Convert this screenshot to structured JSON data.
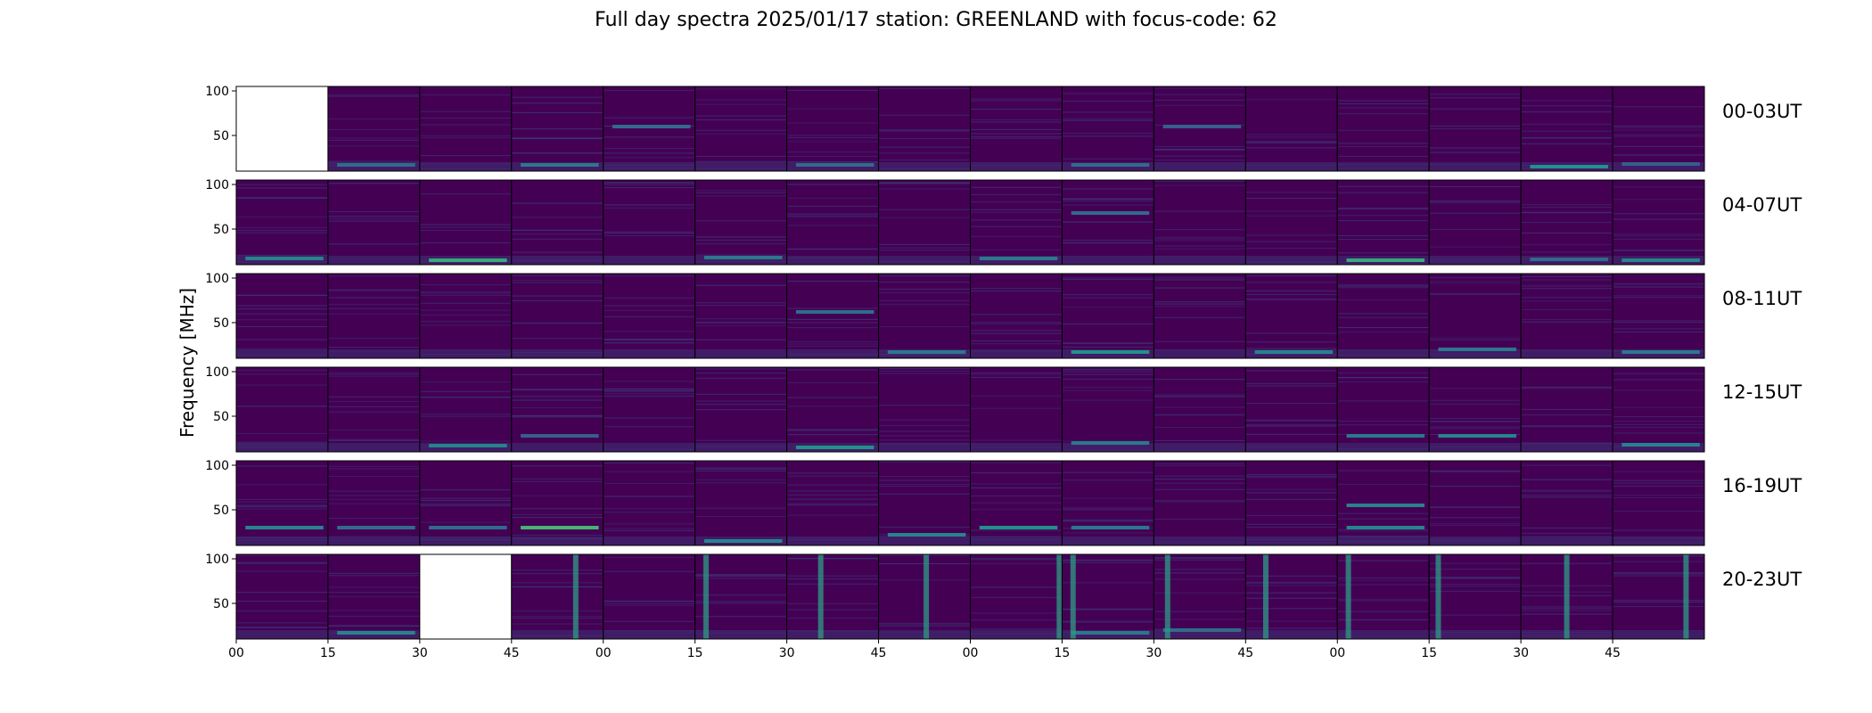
{
  "title": "Full day spectra 2025/01/17 station: GREENLAND with focus-code: 62",
  "chart_data": {
    "type": "heatmap",
    "title": "Full day spectra 2025/01/17 station: GREENLAND with focus-code: 62",
    "ylabel": "Frequency [MHz]",
    "ylim": [
      10,
      105
    ],
    "yticks": [
      50,
      100
    ],
    "xticks": [
      "00",
      "15",
      "30",
      "45",
      "00",
      "15",
      "30",
      "45",
      "00",
      "15",
      "30",
      "45",
      "00",
      "15",
      "30",
      "45"
    ],
    "panels_per_row": 16,
    "minutes_per_panel": 15,
    "colormap": "viridis",
    "colors": {
      "background": "#440154",
      "mid": "#3b528b",
      "teal": "#21918c",
      "green": "#5ec962"
    },
    "rows": [
      {
        "label": "00-03UT",
        "missing_panels": [
          0
        ],
        "features": [
          {
            "panel": 1,
            "freq": 17,
            "strength": 0.35
          },
          {
            "panel": 3,
            "freq": 17,
            "strength": 0.4
          },
          {
            "panel": 4,
            "freq": 60,
            "strength": 0.35
          },
          {
            "panel": 6,
            "freq": 17,
            "strength": 0.35
          },
          {
            "panel": 9,
            "freq": 17,
            "strength": 0.35
          },
          {
            "panel": 10,
            "freq": 60,
            "strength": 0.3
          },
          {
            "panel": 14,
            "freq": 15,
            "strength": 0.5
          },
          {
            "panel": 15,
            "freq": 18,
            "strength": 0.3
          }
        ]
      },
      {
        "label": "04-07UT",
        "missing_panels": [],
        "features": [
          {
            "panel": 0,
            "freq": 17,
            "strength": 0.45
          },
          {
            "panel": 2,
            "freq": 15,
            "strength": 0.6
          },
          {
            "panel": 5,
            "freq": 18,
            "strength": 0.4
          },
          {
            "panel": 8,
            "freq": 17,
            "strength": 0.4
          },
          {
            "panel": 9,
            "freq": 68,
            "strength": 0.35
          },
          {
            "panel": 12,
            "freq": 15,
            "strength": 0.6
          },
          {
            "panel": 14,
            "freq": 16,
            "strength": 0.35
          },
          {
            "panel": 15,
            "freq": 15,
            "strength": 0.45
          }
        ]
      },
      {
        "label": "08-11UT",
        "missing_panels": [],
        "features": [
          {
            "panel": 6,
            "freq": 62,
            "strength": 0.35
          },
          {
            "panel": 7,
            "freq": 17,
            "strength": 0.4
          },
          {
            "panel": 9,
            "freq": 17,
            "strength": 0.5
          },
          {
            "panel": 11,
            "freq": 17,
            "strength": 0.45
          },
          {
            "panel": 13,
            "freq": 20,
            "strength": 0.4
          },
          {
            "panel": 15,
            "freq": 17,
            "strength": 0.4
          }
        ]
      },
      {
        "label": "12-15UT",
        "missing_panels": [],
        "features": [
          {
            "panel": 2,
            "freq": 17,
            "strength": 0.45
          },
          {
            "panel": 3,
            "freq": 28,
            "strength": 0.3
          },
          {
            "panel": 6,
            "freq": 15,
            "strength": 0.5
          },
          {
            "panel": 9,
            "freq": 20,
            "strength": 0.4
          },
          {
            "panel": 12,
            "freq": 28,
            "strength": 0.4
          },
          {
            "panel": 13,
            "freq": 28,
            "strength": 0.45
          },
          {
            "panel": 15,
            "freq": 18,
            "strength": 0.45
          }
        ]
      },
      {
        "label": "16-19UT",
        "missing_panels": [],
        "features": [
          {
            "panel": 0,
            "freq": 30,
            "strength": 0.45
          },
          {
            "panel": 1,
            "freq": 30,
            "strength": 0.35
          },
          {
            "panel": 2,
            "freq": 30,
            "strength": 0.35
          },
          {
            "panel": 3,
            "freq": 30,
            "strength": 0.65
          },
          {
            "panel": 5,
            "freq": 15,
            "strength": 0.45
          },
          {
            "panel": 7,
            "freq": 22,
            "strength": 0.45
          },
          {
            "panel": 8,
            "freq": 30,
            "strength": 0.5
          },
          {
            "panel": 9,
            "freq": 30,
            "strength": 0.4
          },
          {
            "panel": 12,
            "freq": 55,
            "strength": 0.45
          },
          {
            "panel": 12,
            "freq": 30,
            "strength": 0.45
          }
        ]
      },
      {
        "label": "20-23UT",
        "missing_panels": [
          2
        ],
        "features": [
          {
            "panel": 1,
            "freq": 17,
            "strength": 0.45
          },
          {
            "panel": 9,
            "freq": 17,
            "strength": 0.4
          },
          {
            "panel": 10,
            "freq": 20,
            "strength": 0.35
          }
        ],
        "vertical_bursts": [
          {
            "panel": 3,
            "pos": 0.7
          },
          {
            "panel": 5,
            "pos": 0.12
          },
          {
            "panel": 6,
            "pos": 0.37
          },
          {
            "panel": 7,
            "pos": 0.52
          },
          {
            "panel": 8,
            "pos": 0.97
          },
          {
            "panel": 9,
            "pos": 0.12
          },
          {
            "panel": 10,
            "pos": 0.15
          },
          {
            "panel": 11,
            "pos": 0.22
          },
          {
            "panel": 12,
            "pos": 0.12
          },
          {
            "panel": 13,
            "pos": 0.1
          },
          {
            "panel": 14,
            "pos": 0.5
          },
          {
            "panel": 15,
            "pos": 0.8
          }
        ]
      }
    ],
    "grid": false,
    "legend": "none"
  }
}
